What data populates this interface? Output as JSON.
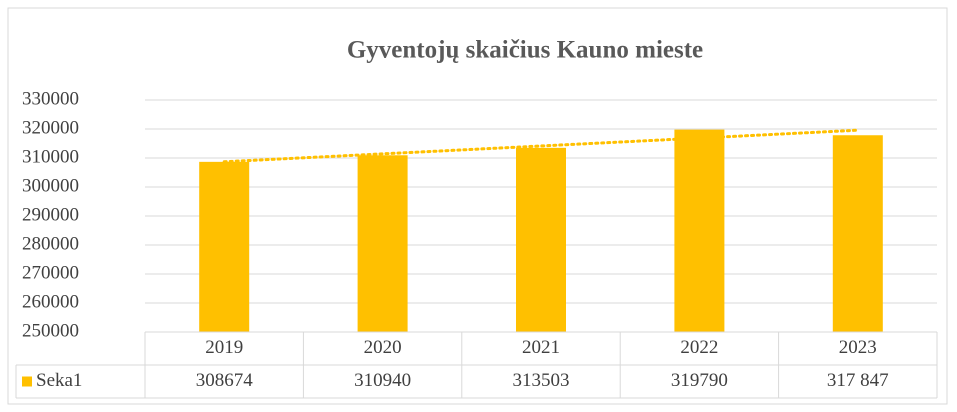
{
  "chart_data": {
    "type": "bar",
    "title": "Gyventojų skaičius Kauno mieste",
    "categories": [
      "2019",
      "2020",
      "2021",
      "2022",
      "2023"
    ],
    "series": [
      {
        "name": "Seka1",
        "color": "#ffc000",
        "values": [
          308674,
          310940,
          313503,
          319790,
          317847
        ],
        "value_labels": [
          "308674",
          "310940",
          "313503",
          "319790",
          "317 847"
        ]
      }
    ],
    "ylim": [
      250000,
      330000
    ],
    "yticks": [
      250000,
      260000,
      270000,
      280000,
      290000,
      300000,
      310000,
      320000,
      330000
    ],
    "grid": true,
    "trendline": "linear",
    "data_table": true
  }
}
